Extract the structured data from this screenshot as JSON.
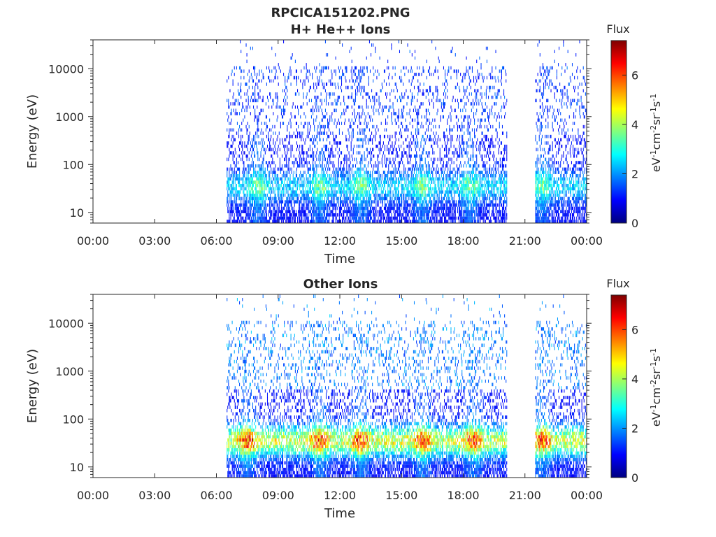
{
  "figure": {
    "title_line1": "RPCICA151202.PNG",
    "title_line2": "H+ He++ Ions"
  },
  "chart_data": [
    {
      "type": "heatmap",
      "title": "H+ He++ Ions",
      "xlabel": "Time",
      "ylabel": "Energy (eV)",
      "x_tick_labels": [
        "00:00",
        "03:00",
        "06:00",
        "09:00",
        "12:00",
        "15:00",
        "18:00",
        "21:00",
        "00:00"
      ],
      "x_tick_hours": [
        0,
        3,
        6,
        9,
        12,
        15,
        18,
        21,
        24
      ],
      "xlim_hours": [
        0,
        24
      ],
      "y_scale": "log",
      "ylim": [
        6,
        40000
      ],
      "y_tick_values": [
        10,
        100,
        1000,
        10000
      ],
      "y_tick_labels": [
        "10",
        "100",
        "1000",
        "10000"
      ],
      "colorbar": {
        "label": "Flux",
        "unit_label": "eV-1cm-2sr-1s-1",
        "colormap": "jet",
        "range": [
          0,
          7.4
        ],
        "tick_values": [
          0,
          2,
          4,
          6
        ],
        "tick_labels": [
          "0",
          "2",
          "4",
          "6"
        ]
      },
      "data_coverage_hours": [
        [
          6.5,
          20.1
        ],
        [
          21.5,
          24
        ]
      ],
      "band_peak_energy_eV": 35,
      "band_peak_flux": 3.5,
      "high_energy_flux": 1.0,
      "enhancement_times_hours": [
        8.0,
        11.0,
        13.0,
        16.0,
        18.3,
        21.8
      ]
    },
    {
      "type": "heatmap",
      "title": "Other Ions",
      "xlabel": "Time",
      "ylabel": "Energy (eV)",
      "x_tick_labels": [
        "00:00",
        "03:00",
        "06:00",
        "09:00",
        "12:00",
        "15:00",
        "18:00",
        "21:00",
        "00:00"
      ],
      "x_tick_hours": [
        0,
        3,
        6,
        9,
        12,
        15,
        18,
        21,
        24
      ],
      "xlim_hours": [
        0,
        24
      ],
      "y_scale": "log",
      "ylim": [
        6,
        40000
      ],
      "y_tick_values": [
        10,
        100,
        1000,
        10000
      ],
      "y_tick_labels": [
        "10",
        "100",
        "1000",
        "10000"
      ],
      "colorbar": {
        "label": "Flux",
        "unit_label": "eV-1cm-2sr-1s-1",
        "colormap": "jet",
        "range": [
          0,
          7.4
        ],
        "tick_values": [
          0,
          2,
          4,
          6
        ],
        "tick_labels": [
          "0",
          "2",
          "4",
          "6"
        ]
      },
      "data_coverage_hours": [
        [
          6.5,
          20.1
        ],
        [
          21.5,
          24
        ]
      ],
      "band_peak_energy_eV": 35,
      "band_peak_flux": 6.0,
      "high_energy_flux": 1.5,
      "enhancement_times_hours": [
        7.5,
        11.0,
        13.0,
        16.0,
        18.5,
        21.8
      ]
    }
  ]
}
